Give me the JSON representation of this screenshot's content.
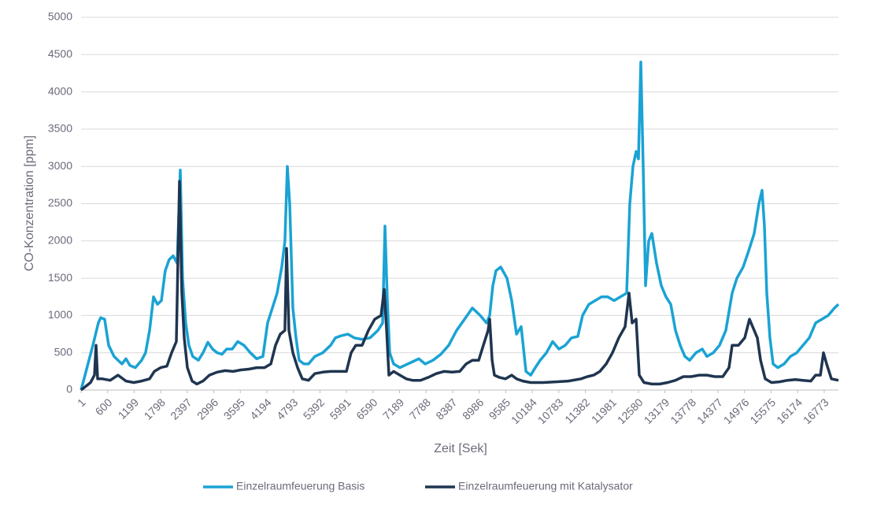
{
  "chart_data": {
    "type": "line",
    "y_label": "CO-Konzentration [ppm]",
    "x_label": "Zeit [Sek]",
    "xlim": [
      1,
      17094
    ],
    "xticks": [
      1,
      600,
      1199,
      1798,
      2397,
      2996,
      3595,
      4194,
      4793,
      5392,
      5991,
      6590,
      7189,
      7788,
      8387,
      8986,
      9585,
      10184,
      10783,
      11382,
      11981,
      12580,
      13179,
      13778,
      14377,
      14976,
      15575,
      16174,
      16773
    ],
    "ylim": [
      0,
      5000
    ],
    "yticks": [
      0,
      500,
      1000,
      1500,
      2000,
      2500,
      3000,
      3500,
      4000,
      4500,
      5000
    ],
    "grid": true,
    "legend": "bottom",
    "series": [
      {
        "name": "Einzelraumfeuerung Basis",
        "color": "#1aa3d4",
        "x": [
          1,
          267,
          391,
          444,
          533,
          622,
          746,
          835,
          924,
          1013,
          1102,
          1226,
          1368,
          1457,
          1546,
          1635,
          1724,
          1813,
          1901,
          1990,
          2079,
          2168,
          2239,
          2292,
          2363,
          2434,
          2523,
          2648,
          2754,
          2861,
          2968,
          3074,
          3181,
          3287,
          3412,
          3536,
          3678,
          3821,
          3963,
          4105,
          4211,
          4318,
          4425,
          4531,
          4602,
          4656,
          4709,
          4780,
          4851,
          4922,
          5029,
          5135,
          5277,
          5455,
          5633,
          5740,
          5882,
          6024,
          6166,
          6344,
          6522,
          6700,
          6807,
          6860,
          6913,
          6966,
          7055,
          7197,
          7339,
          7481,
          7623,
          7765,
          7943,
          8121,
          8299,
          8477,
          8655,
          8832,
          9010,
          9152,
          9223,
          9294,
          9365,
          9472,
          9614,
          9721,
          9828,
          9934,
          10041,
          10148,
          10254,
          10361,
          10503,
          10645,
          10787,
          10929,
          11071,
          11213,
          11320,
          11462,
          11604,
          11746,
          11888,
          12030,
          12173,
          12315,
          12386,
          12457,
          12528,
          12581,
          12634,
          12688,
          12741,
          12812,
          12883,
          12990,
          13096,
          13203,
          13310,
          13416,
          13523,
          13630,
          13736,
          13878,
          14021,
          14127,
          14269,
          14411,
          14553,
          14696,
          14802,
          14944,
          15086,
          15193,
          15300,
          15371,
          15424,
          15477,
          15548,
          15619,
          15726,
          15868,
          16010,
          16153,
          16295,
          16437,
          16579,
          16721,
          16863,
          17005,
          17094
        ],
        "values": [
          0,
          600,
          900,
          970,
          950,
          600,
          450,
          400,
          350,
          420,
          330,
          300,
          400,
          500,
          800,
          1250,
          1150,
          1200,
          1600,
          1750,
          1800,
          1700,
          2950,
          1500,
          900,
          600,
          450,
          400,
          500,
          640,
          550,
          500,
          480,
          550,
          550,
          650,
          600,
          500,
          420,
          450,
          900,
          1100,
          1300,
          1650,
          2000,
          3000,
          2500,
          1100,
          700,
          400,
          350,
          350,
          450,
          500,
          600,
          700,
          730,
          750,
          700,
          680,
          700,
          800,
          900,
          2200,
          1200,
          500,
          350,
          300,
          340,
          380,
          420,
          350,
          400,
          480,
          600,
          800,
          950,
          1100,
          1000,
          900,
          1000,
          1400,
          1600,
          1650,
          1500,
          1200,
          750,
          850,
          250,
          200,
          300,
          400,
          500,
          650,
          550,
          600,
          700,
          720,
          1000,
          1150,
          1200,
          1250,
          1250,
          1200,
          1250,
          1300,
          2500,
          3000,
          3200,
          3100,
          4400,
          3000,
          1400,
          2000,
          2100,
          1700,
          1400,
          1250,
          1150,
          800,
          600,
          450,
          400,
          500,
          550,
          450,
          500,
          600,
          800,
          1300,
          1500,
          1650,
          1900,
          2100,
          2500,
          2680,
          2200,
          1300,
          700,
          350,
          300,
          350,
          450,
          500,
          600,
          700,
          900,
          950,
          1000,
          1100,
          1150
        ]
      },
      {
        "name": "Einzelraumfeuerung mit Katalysator",
        "color": "#1f3550",
        "x": [
          1,
          214,
          303,
          338,
          374,
          481,
          658,
          835,
          1013,
          1192,
          1368,
          1546,
          1653,
          1796,
          1938,
          2044,
          2151,
          2222,
          2276,
          2329,
          2400,
          2507,
          2613,
          2754,
          2897,
          3074,
          3253,
          3430,
          3608,
          3786,
          3963,
          4141,
          4283,
          4390,
          4497,
          4602,
          4639,
          4692,
          4780,
          4888,
          4994,
          5135,
          5277,
          5455,
          5633,
          5812,
          5989,
          6096,
          6202,
          6344,
          6487,
          6629,
          6771,
          6842,
          6896,
          6949,
          7055,
          7197,
          7339,
          7481,
          7660,
          7838,
          8016,
          8193,
          8371,
          8548,
          8691,
          8832,
          8975,
          9081,
          9188,
          9223,
          9277,
          9330,
          9437,
          9579,
          9721,
          9828,
          9970,
          10148,
          10432,
          10716,
          11000,
          11284,
          11427,
          11569,
          11711,
          11853,
          11995,
          12137,
          12279,
          12368,
          12439,
          12528,
          12599,
          12706,
          12883,
          13061,
          13239,
          13416,
          13594,
          13772,
          13950,
          14127,
          14305,
          14483,
          14625,
          14696,
          14838,
          14980,
          15086,
          15193,
          15264,
          15336,
          15442,
          15584,
          15762,
          15940,
          16118,
          16295,
          16473,
          16579,
          16687,
          16757,
          16828,
          16935,
          17094
        ],
        "values": [
          0,
          100,
          200,
          600,
          150,
          150,
          130,
          200,
          120,
          100,
          120,
          150,
          250,
          300,
          320,
          500,
          650,
          2800,
          1300,
          700,
          300,
          120,
          80,
          120,
          200,
          240,
          260,
          250,
          270,
          280,
          300,
          300,
          350,
          600,
          750,
          800,
          1900,
          800,
          500,
          300,
          150,
          130,
          220,
          240,
          250,
          250,
          250,
          500,
          600,
          600,
          800,
          950,
          1000,
          1350,
          800,
          200,
          250,
          200,
          150,
          130,
          130,
          170,
          220,
          250,
          240,
          250,
          350,
          400,
          400,
          600,
          800,
          950,
          400,
          200,
          170,
          150,
          200,
          150,
          120,
          100,
          100,
          110,
          120,
          150,
          180,
          200,
          250,
          350,
          500,
          700,
          850,
          1300,
          900,
          950,
          200,
          100,
          80,
          80,
          100,
          130,
          180,
          180,
          200,
          200,
          180,
          180,
          300,
          600,
          600,
          700,
          950,
          800,
          700,
          400,
          150,
          100,
          110,
          130,
          140,
          130,
          120,
          200,
          200,
          500,
          350,
          150,
          130
        ]
      }
    ]
  }
}
